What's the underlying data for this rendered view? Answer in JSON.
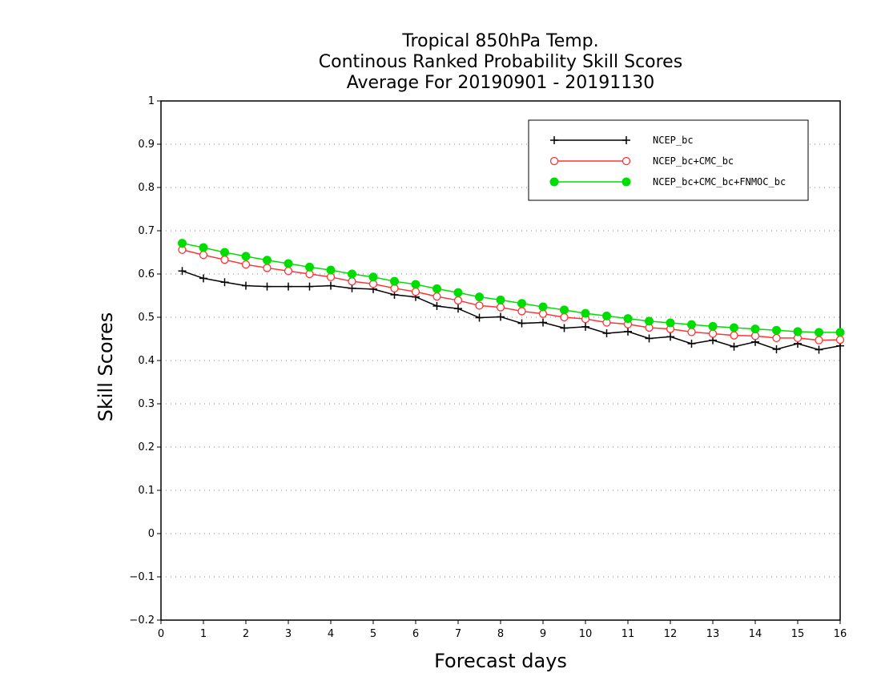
{
  "chart_data": {
    "type": "line",
    "title": [
      "Tropical 850hPa Temp.",
      "Continous Ranked Probability Skill Scores",
      "Average For 20190901 - 20191130"
    ],
    "xlabel": "Forecast days",
    "ylabel": "Skill Scores",
    "xlim": [
      0,
      16
    ],
    "ylim": [
      -0.2,
      1
    ],
    "xticks": [
      0,
      1,
      2,
      3,
      4,
      5,
      6,
      7,
      8,
      9,
      10,
      11,
      12,
      13,
      14,
      15,
      16
    ],
    "yticks": [
      -0.2,
      -0.1,
      0,
      0.1,
      0.2,
      0.3,
      0.4,
      0.5,
      0.6,
      0.7,
      0.8,
      0.9,
      1
    ],
    "grid": "horizontal dotted",
    "legend_position": "top-right",
    "x": [
      0.5,
      1,
      1.5,
      2,
      2.5,
      3,
      3.5,
      4,
      4.5,
      5,
      5.5,
      6,
      6.5,
      7,
      7.5,
      8,
      8.5,
      9,
      9.5,
      10,
      10.5,
      11,
      11.5,
      12,
      12.5,
      13,
      13.5,
      14,
      14.5,
      15,
      15.5,
      16
    ],
    "series": [
      {
        "name": "NCEP_bc",
        "color": "#000000",
        "marker": "plus",
        "values": [
          0.607,
          0.59,
          0.581,
          0.573,
          0.571,
          0.571,
          0.571,
          0.573,
          0.567,
          0.565,
          0.552,
          0.547,
          0.526,
          0.52,
          0.499,
          0.501,
          0.486,
          0.488,
          0.475,
          0.478,
          0.463,
          0.467,
          0.451,
          0.455,
          0.439,
          0.447,
          0.432,
          0.443,
          0.426,
          0.439,
          0.425,
          0.434
        ]
      },
      {
        "name": "NCEP_bc+CMC_bc",
        "color": "#ff3333",
        "marker": "open-circle",
        "values": [
          0.656,
          0.644,
          0.633,
          0.622,
          0.614,
          0.607,
          0.6,
          0.593,
          0.583,
          0.577,
          0.567,
          0.559,
          0.548,
          0.539,
          0.527,
          0.523,
          0.514,
          0.508,
          0.5,
          0.496,
          0.488,
          0.484,
          0.476,
          0.473,
          0.466,
          0.462,
          0.458,
          0.457,
          0.452,
          0.452,
          0.447,
          0.448
        ]
      },
      {
        "name": "NCEP_bc+CMC_bc+FNMOC_bc",
        "color": "#00dd00",
        "marker": "filled-circle",
        "values": [
          0.671,
          0.661,
          0.65,
          0.641,
          0.632,
          0.624,
          0.616,
          0.609,
          0.6,
          0.593,
          0.583,
          0.576,
          0.566,
          0.557,
          0.547,
          0.54,
          0.532,
          0.524,
          0.517,
          0.509,
          0.503,
          0.497,
          0.491,
          0.487,
          0.483,
          0.479,
          0.476,
          0.473,
          0.47,
          0.467,
          0.465,
          0.465
        ]
      }
    ]
  }
}
